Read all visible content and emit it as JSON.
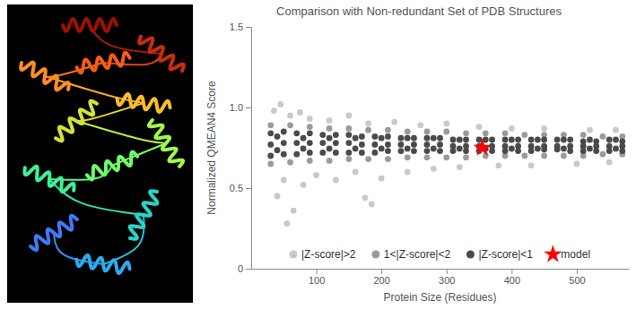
{
  "chart_data": {
    "type": "scatter",
    "title": "Comparison with Non-redundant Set of PDB Structures",
    "x_label": "Protein Size (Residues)",
    "y_label": "Normalized QMEAN4 Score",
    "xlim": [
      0,
      580
    ],
    "ylim": [
      0,
      1.5
    ],
    "xticks": [
      100,
      200,
      300,
      400,
      500
    ],
    "yticks": [
      0,
      0.5,
      {
        "value": 1,
        "label": "1.0"
      },
      1.5
    ],
    "grid": false,
    "legend": "bottom",
    "series": [
      {
        "name": "|Z-score|>2",
        "color": "#c9c9c9",
        "marker": "circle",
        "x": [
          35,
          45,
          60,
          75,
          90,
          120,
          150,
          180,
          220,
          260,
          300,
          350,
          400,
          450,
          520,
          560,
          40,
          55,
          50,
          65,
          80,
          100,
          130,
          160,
          175,
          185,
          200,
          240,
          280,
          320,
          380,
          430,
          500,
          550
        ],
        "values": [
          0.98,
          1.02,
          0.95,
          0.97,
          0.93,
          0.92,
          0.95,
          0.9,
          0.91,
          0.89,
          0.9,
          0.88,
          0.87,
          0.87,
          0.86,
          0.86,
          0.45,
          0.28,
          0.55,
          0.36,
          0.52,
          0.58,
          0.55,
          0.6,
          0.44,
          0.4,
          0.56,
          0.6,
          0.62,
          0.63,
          0.64,
          0.64,
          0.65,
          0.66
        ]
      },
      {
        "name": "1<|Z-score|<2",
        "color": "#9b9b9b",
        "marker": "circle",
        "x": [
          30,
          60,
          90,
          120,
          150,
          180,
          210,
          240,
          270,
          300,
          330,
          360,
          390,
          420,
          450,
          480,
          510,
          540,
          570,
          30,
          60,
          90,
          120,
          150,
          180,
          210,
          240,
          270,
          300,
          330,
          360,
          390,
          420,
          450,
          480,
          510,
          540,
          570
        ],
        "values": [
          0.89,
          0.89,
          0.88,
          0.87,
          0.87,
          0.86,
          0.86,
          0.85,
          0.85,
          0.85,
          0.84,
          0.84,
          0.84,
          0.83,
          0.83,
          0.83,
          0.83,
          0.82,
          0.82,
          0.65,
          0.66,
          0.67,
          0.67,
          0.68,
          0.68,
          0.68,
          0.69,
          0.69,
          0.69,
          0.69,
          0.7,
          0.7,
          0.7,
          0.7,
          0.7,
          0.7,
          0.71,
          0.71
        ]
      },
      {
        "name": "|Z-score|<1",
        "color": "#4a4a4a",
        "marker": "circle",
        "x": [
          30,
          30,
          30,
          50,
          50,
          50,
          70,
          70,
          70,
          90,
          90,
          90,
          110,
          110,
          110,
          130,
          130,
          130,
          150,
          150,
          150,
          170,
          170,
          170,
          190,
          190,
          190,
          210,
          210,
          210,
          230,
          230,
          230,
          250,
          250,
          250,
          270,
          270,
          270,
          290,
          290,
          290,
          310,
          310,
          310,
          330,
          330,
          330,
          350,
          350,
          350,
          370,
          370,
          370,
          390,
          390,
          390,
          410,
          410,
          410,
          430,
          430,
          430,
          450,
          450,
          450,
          470,
          470,
          470,
          490,
          490,
          490,
          510,
          510,
          510,
          530,
          530,
          530,
          550,
          550,
          550,
          570,
          570,
          570,
          40,
          40,
          80,
          80,
          120,
          120,
          160,
          160,
          200,
          200,
          240,
          240,
          280,
          280,
          320,
          320,
          360,
          360,
          400,
          400,
          440,
          440,
          480,
          480,
          520,
          520,
          560,
          560
        ],
        "values": [
          0.84,
          0.77,
          0.7,
          0.85,
          0.78,
          0.71,
          0.84,
          0.78,
          0.71,
          0.84,
          0.78,
          0.72,
          0.83,
          0.78,
          0.72,
          0.83,
          0.78,
          0.72,
          0.83,
          0.78,
          0.72,
          0.82,
          0.77,
          0.72,
          0.82,
          0.77,
          0.72,
          0.82,
          0.77,
          0.73,
          0.81,
          0.77,
          0.73,
          0.81,
          0.77,
          0.73,
          0.81,
          0.77,
          0.73,
          0.81,
          0.77,
          0.73,
          0.8,
          0.76,
          0.73,
          0.8,
          0.76,
          0.73,
          0.8,
          0.76,
          0.73,
          0.8,
          0.76,
          0.73,
          0.8,
          0.76,
          0.73,
          0.8,
          0.76,
          0.73,
          0.8,
          0.76,
          0.73,
          0.8,
          0.76,
          0.74,
          0.8,
          0.76,
          0.74,
          0.8,
          0.76,
          0.73,
          0.79,
          0.76,
          0.73,
          0.79,
          0.76,
          0.73,
          0.8,
          0.76,
          0.73,
          0.79,
          0.76,
          0.73,
          0.82,
          0.735,
          0.81,
          0.745,
          0.81,
          0.745,
          0.81,
          0.745,
          0.81,
          0.745,
          0.81,
          0.745,
          0.81,
          0.745,
          0.8,
          0.745,
          0.8,
          0.745,
          0.8,
          0.745,
          0.8,
          0.745,
          0.8,
          0.745,
          0.8,
          0.745,
          0.8,
          0.745
        ]
      },
      {
        "name": "model",
        "color": "#ff0000",
        "marker": "star",
        "x": [
          355
        ],
        "values": [
          0.75
        ]
      }
    ]
  }
}
